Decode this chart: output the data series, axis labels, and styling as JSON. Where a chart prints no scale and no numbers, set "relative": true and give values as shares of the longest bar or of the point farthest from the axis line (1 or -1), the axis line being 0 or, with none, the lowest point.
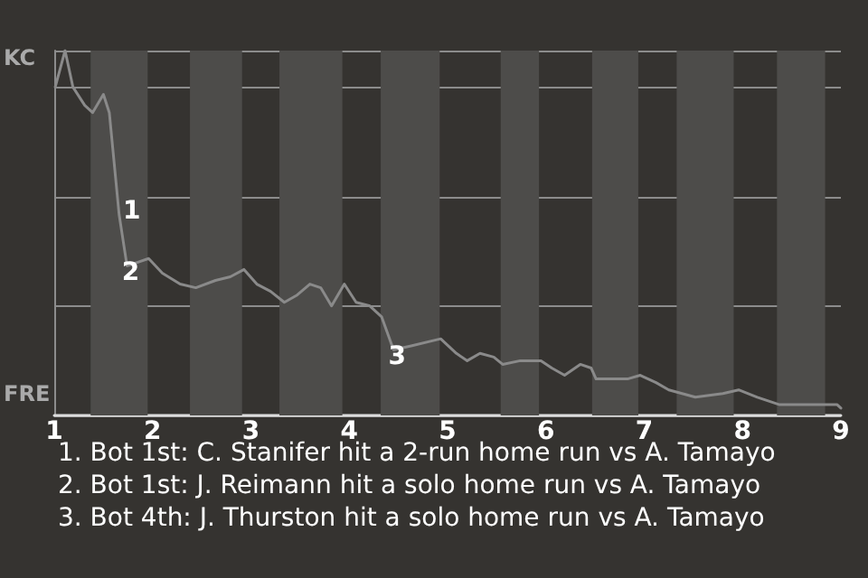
{
  "chart_data": {
    "type": "line",
    "relative": true,
    "x": [
      1.01,
      1.11,
      1.19,
      1.31,
      1.39,
      1.5,
      1.56,
      1.66,
      1.74,
      1.85,
      1.96,
      2.1,
      2.28,
      2.44,
      2.64,
      2.79,
      2.93,
      3.06,
      3.2,
      3.34,
      3.47,
      3.6,
      3.71,
      3.82,
      3.95,
      4.07,
      4.21,
      4.33,
      4.45,
      4.62,
      4.93,
      5.09,
      5.2,
      5.33,
      5.47,
      5.56,
      5.74,
      5.95,
      6.06,
      6.19,
      6.35,
      6.46,
      6.51,
      6.67,
      6.83,
      6.96,
      7.12,
      7.25,
      7.52,
      7.8,
      7.96,
      8.15,
      8.37,
      8.96,
      9
    ],
    "series": [
      {
        "color": "#8a8a8a",
        "values": [
          0.9,
          1,
          0.9,
          0.85,
          0.83,
          0.88,
          0.83,
          0.55,
          0.41,
          0.42,
          0.43,
          0.39,
          0.36,
          0.35,
          0.37,
          0.38,
          0.4,
          0.36,
          0.34,
          0.31,
          0.33,
          0.36,
          0.35,
          0.3,
          0.36,
          0.31,
          0.3,
          0.27,
          0.18,
          0.19,
          0.21,
          0.17,
          0.15,
          0.17,
          0.16,
          0.14,
          0.15,
          0.15,
          0.13,
          0.11,
          0.14,
          0.13,
          0.1,
          0.1,
          0.1,
          0.11,
          0.09,
          0.07,
          0.05,
          0.06,
          0.07,
          0.05,
          0.03,
          0.03,
          0.02
        ]
      }
    ],
    "xlim": [
      1,
      9
    ],
    "xticks": [
      1,
      2,
      3,
      4,
      5,
      6,
      7,
      8,
      9
    ],
    "bands": [
      {
        "axis": "x",
        "from": 1.37,
        "to": 1.95,
        "color": "#4d4c4a"
      },
      {
        "axis": "x",
        "from": 2.38,
        "to": 2.91,
        "color": "#4d4c4a"
      },
      {
        "axis": "x",
        "from": 3.29,
        "to": 3.93,
        "color": "#4d4c4a"
      },
      {
        "axis": "x",
        "from": 4.32,
        "to": 4.92,
        "color": "#4d4c4a"
      },
      {
        "axis": "x",
        "from": 5.54,
        "to": 5.93,
        "color": "#4d4c4a"
      },
      {
        "axis": "x",
        "from": 6.47,
        "to": 6.94,
        "color": "#4d4c4a"
      },
      {
        "axis": "x",
        "from": 7.33,
        "to": 7.91,
        "color": "#4d4c4a"
      },
      {
        "axis": "x",
        "from": 8.35,
        "to": 8.84,
        "color": "#4d4c4a"
      }
    ],
    "annotations": [
      "KC",
      "FRE",
      {
        "text": "1",
        "x": 1.66,
        "y": 0.55
      },
      {
        "text": "2",
        "x": 1.74,
        "y": 0.41
      },
      {
        "text": "3",
        "x": 4.45,
        "y": 0.18
      },
      "1. Bot 1st: C. Stanifer hit a 2-run home run vs A. Tamayo",
      "2. Bot 1st: J. Reimann hit a solo home run vs A. Tamayo",
      "3. Bot 4th: J. Thurston hit a solo home run vs A. Tamayo"
    ],
    "grid": "y",
    "marker": "none",
    "line_style": "solid"
  }
}
